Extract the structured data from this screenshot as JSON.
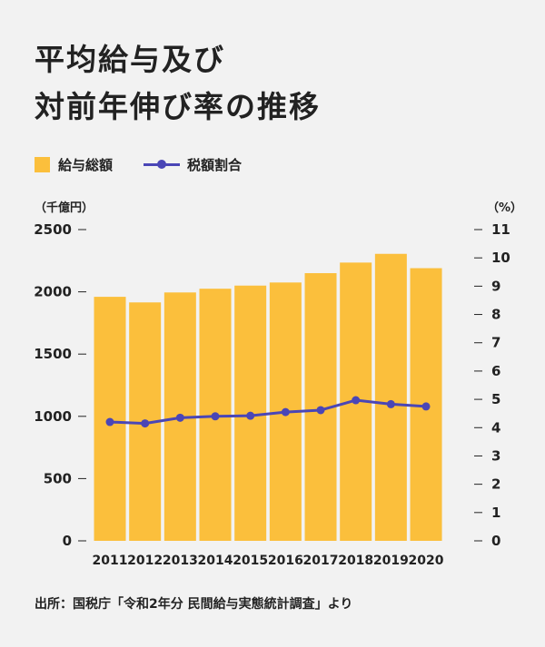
{
  "title_lines": [
    "平均給与及び",
    "対前年伸び率の推移"
  ],
  "legend": {
    "bar": "給与総額",
    "line": "税額割合"
  },
  "units": {
    "left": "（千億円）",
    "right": "（%）"
  },
  "source": "出所：国税庁「令和2年分 民間給与実態統計調査」より",
  "colors": {
    "bar": "#fbbf3c",
    "line": "#4a46b6",
    "text": "#222222",
    "background": "#f2f2f2"
  },
  "chart_data": {
    "type": "bar",
    "categories": [
      "2011",
      "2012",
      "2013",
      "2014",
      "2015",
      "2016",
      "2017",
      "2018",
      "2019",
      "2020"
    ],
    "series": [
      {
        "name": "給与総額",
        "type": "bar",
        "axis": "left",
        "values": [
          1960,
          1915,
          1995,
          2025,
          2050,
          2075,
          2150,
          2235,
          2305,
          2190
        ]
      },
      {
        "name": "税額割合",
        "type": "line",
        "axis": "right",
        "values": [
          4.2,
          4.15,
          4.35,
          4.4,
          4.42,
          4.55,
          4.62,
          4.97,
          4.83,
          4.75
        ]
      }
    ],
    "y_left": {
      "ticks": [
        0,
        500,
        1000,
        1500,
        2000,
        2500
      ],
      "range": [
        0,
        2500
      ]
    },
    "y_right": {
      "ticks": [
        0,
        1,
        2,
        3,
        4,
        5,
        6,
        7,
        8,
        9,
        10,
        11
      ],
      "range": [
        0,
        11
      ]
    },
    "legend_position": "top-left",
    "grid": false
  }
}
